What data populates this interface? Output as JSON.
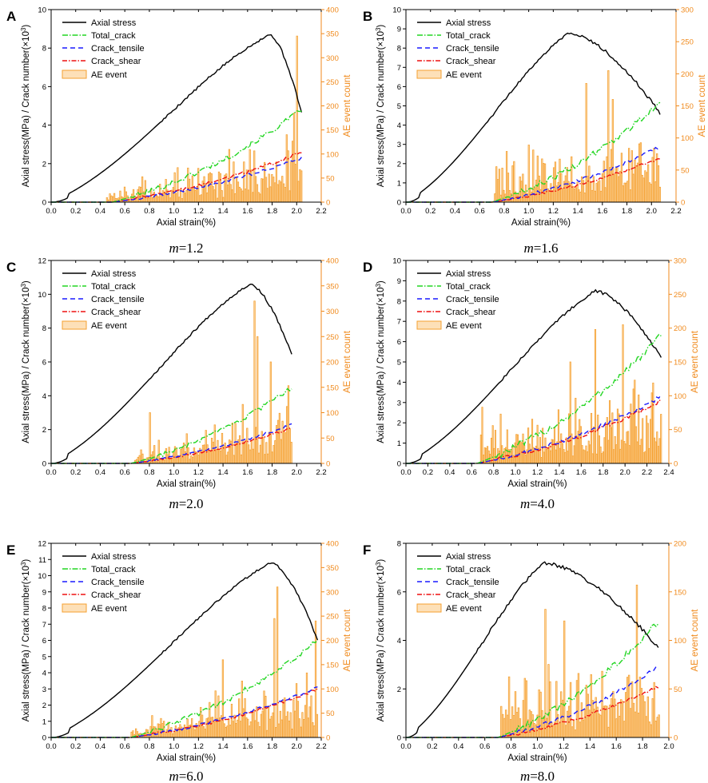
{
  "figure": {
    "colors": {
      "axial_stress": "#000000",
      "total_crack": "#22d622",
      "crack_tensile": "#1a1aff",
      "crack_shear": "#ee1111",
      "ae_event": "#f5a030",
      "right_axis": "#f08a1c"
    },
    "legend": [
      "Axial stress",
      "Total_crack",
      "Crack_tensile",
      "Crack_shear",
      "AE event"
    ],
    "left_ylabel": "Axial stress(MPa) / Crack number(×10",
    "left_ylabel_sup": "3",
    "left_ylabel_end": ")",
    "right_ylabel": "AE event count",
    "xlabel": "Axial strain(%)"
  },
  "chart_data": [
    {
      "panel": "A",
      "type": "line+bar",
      "m_label": "m",
      "m_value": "=1.2",
      "xlim": [
        0,
        2.2
      ],
      "xticks": [
        "0.0",
        "0.2",
        "0.4",
        "0.6",
        "0.8",
        "1.0",
        "1.2",
        "1.4",
        "1.6",
        "1.8",
        "2.0",
        "2.2"
      ],
      "ylim": [
        0,
        10
      ],
      "yticks": [
        "0",
        "2",
        "4",
        "6",
        "8",
        "10"
      ],
      "y2lim": [
        0,
        400
      ],
      "y2ticks": [
        "0",
        "50",
        "100",
        "150",
        "200",
        "250",
        "300",
        "350",
        "400"
      ],
      "strain_end": 2.04,
      "peak_strain": 1.78,
      "peak_stress": 8.7,
      "end_stress": 4.6,
      "crack_start": 0.5,
      "total_crack_end": 4.8,
      "tensile_end": 2.3,
      "shear_end": 2.6,
      "ae_start": 0.45,
      "ae_mean_start": 15,
      "ae_mean_end": 80,
      "ae_spikes": [
        [
          2.0,
          345
        ],
        [
          1.98,
          185
        ],
        [
          1.92,
          140
        ]
      ]
    },
    {
      "panel": "B",
      "type": "line+bar",
      "m_label": "m",
      "m_value": "=1.6",
      "xlim": [
        0,
        2.2
      ],
      "xticks": [
        "0.0",
        "0.2",
        "0.4",
        "0.6",
        "0.8",
        "1.0",
        "1.2",
        "1.4",
        "1.6",
        "1.8",
        "2.0",
        "2.2"
      ],
      "ylim": [
        0,
        10
      ],
      "yticks": [
        "0",
        "1",
        "2",
        "3",
        "4",
        "5",
        "6",
        "7",
        "8",
        "9",
        "10"
      ],
      "y2lim": [
        0,
        300
      ],
      "y2ticks": [
        "0",
        "50",
        "100",
        "150",
        "200",
        "250",
        "300"
      ],
      "strain_end": 2.07,
      "peak_strain": 1.33,
      "peak_stress": 8.8,
      "end_stress": 4.6,
      "crack_start": 0.7,
      "total_crack_end": 5.2,
      "tensile_end": 2.9,
      "shear_end": 2.3,
      "ae_start": 0.72,
      "ae_mean_start": 40,
      "ae_mean_end": 70,
      "ae_spikes": [
        [
          1.64,
          205
        ],
        [
          1.47,
          185
        ],
        [
          1.68,
          160
        ]
      ]
    },
    {
      "panel": "C",
      "type": "line+bar",
      "m_label": "m",
      "m_value": "=2.0",
      "xlim": [
        0,
        2.2
      ],
      "xticks": [
        "0.0",
        "0.2",
        "0.4",
        "0.6",
        "0.8",
        "1.0",
        "1.2",
        "1.4",
        "1.6",
        "1.8",
        "2.0",
        "2.2"
      ],
      "ylim": [
        0,
        12
      ],
      "yticks": [
        "0",
        "2",
        "4",
        "6",
        "8",
        "10",
        "12"
      ],
      "y2lim": [
        0,
        400
      ],
      "y2ticks": [
        "0",
        "50",
        "100",
        "150",
        "200",
        "250",
        "300",
        "350",
        "400"
      ],
      "strain_end": 1.96,
      "peak_strain": 1.62,
      "peak_stress": 10.6,
      "end_stress": 6.4,
      "crack_start": 0.65,
      "total_crack_end": 4.5,
      "tensile_end": 2.3,
      "shear_end": 2.1,
      "ae_start": 0.68,
      "ae_mean_start": 15,
      "ae_mean_end": 80,
      "ae_spikes": [
        [
          1.65,
          320
        ],
        [
          1.68,
          250
        ],
        [
          1.78,
          200
        ],
        [
          0.8,
          100
        ]
      ]
    },
    {
      "panel": "D",
      "type": "line+bar",
      "m_label": "m",
      "m_value": "=4.0",
      "xlim": [
        0,
        2.4
      ],
      "xticks": [
        "0.0",
        "0.2",
        "0.4",
        "0.6",
        "0.8",
        "1.0",
        "1.2",
        "1.4",
        "1.6",
        "1.8",
        "2.0",
        "2.2",
        "2.4"
      ],
      "ylim": [
        0,
        10
      ],
      "yticks": [
        "0",
        "1",
        "2",
        "3",
        "4",
        "5",
        "6",
        "7",
        "8",
        "9",
        "10"
      ],
      "y2lim": [
        0,
        300
      ],
      "y2ticks": [
        "0",
        "50",
        "100",
        "150",
        "200",
        "250",
        "300"
      ],
      "strain_end": 2.33,
      "peak_strain": 1.73,
      "peak_stress": 8.5,
      "end_stress": 5.2,
      "crack_start": 0.65,
      "total_crack_end": 6.3,
      "tensile_end": 3.3,
      "shear_end": 3.1,
      "ae_start": 0.68,
      "ae_mean_start": 40,
      "ae_mean_end": 60,
      "ae_spikes": [
        [
          1.73,
          198
        ],
        [
          1.98,
          205
        ],
        [
          1.5,
          150
        ]
      ]
    },
    {
      "panel": "E",
      "type": "line+bar",
      "m_label": "m",
      "m_value": "=6.0",
      "xlim": [
        0,
        2.2
      ],
      "xticks": [
        "0.0",
        "0.2",
        "0.4",
        "0.6",
        "0.8",
        "1.0",
        "1.2",
        "1.4",
        "1.6",
        "1.8",
        "2.0",
        "2.2"
      ],
      "ylim": [
        0,
        12
      ],
      "yticks": [
        "0",
        "1",
        "2",
        "3",
        "4",
        "5",
        "6",
        "7",
        "8",
        "9",
        "10",
        "11",
        "12"
      ],
      "y2lim": [
        0,
        400
      ],
      "y2ticks": [
        "0",
        "50",
        "100",
        "150",
        "200",
        "250",
        "300",
        "350",
        "400"
      ],
      "strain_end": 2.17,
      "peak_strain": 1.79,
      "peak_stress": 10.8,
      "end_stress": 6.0,
      "crack_start": 0.65,
      "total_crack_end": 6.0,
      "tensile_end": 3.1,
      "shear_end": 3.0,
      "ae_start": 0.65,
      "ae_mean_start": 15,
      "ae_mean_end": 90,
      "ae_spikes": [
        [
          1.84,
          310
        ],
        [
          1.82,
          245
        ],
        [
          2.15,
          240
        ],
        [
          1.4,
          160
        ]
      ]
    },
    {
      "panel": "F",
      "type": "line+bar",
      "m_label": "m",
      "m_value": "=8.0",
      "xlim": [
        0,
        2.0
      ],
      "xticks": [
        "0.0",
        "0.2",
        "0.4",
        "0.6",
        "0.8",
        "1.0",
        "1.2",
        "1.4",
        "1.6",
        "1.8",
        "2.0"
      ],
      "ylim": [
        0,
        8
      ],
      "yticks": [
        "0",
        "2",
        "4",
        "6",
        "8"
      ],
      "y2lim": [
        0,
        200
      ],
      "y2ticks": [
        "0",
        "50",
        "100",
        "150",
        "200"
      ],
      "strain_end": 1.92,
      "peak_strain": 1.05,
      "peak_stress": 7.2,
      "end_stress": 3.7,
      "crack_start": 0.7,
      "total_crack_end": 4.8,
      "tensile_end": 2.9,
      "shear_end": 2.1,
      "ae_start": 0.72,
      "ae_mean_start": 40,
      "ae_mean_end": 45,
      "ae_spikes": [
        [
          1.75,
          157
        ],
        [
          1.06,
          132
        ],
        [
          1.2,
          120
        ]
      ]
    }
  ]
}
